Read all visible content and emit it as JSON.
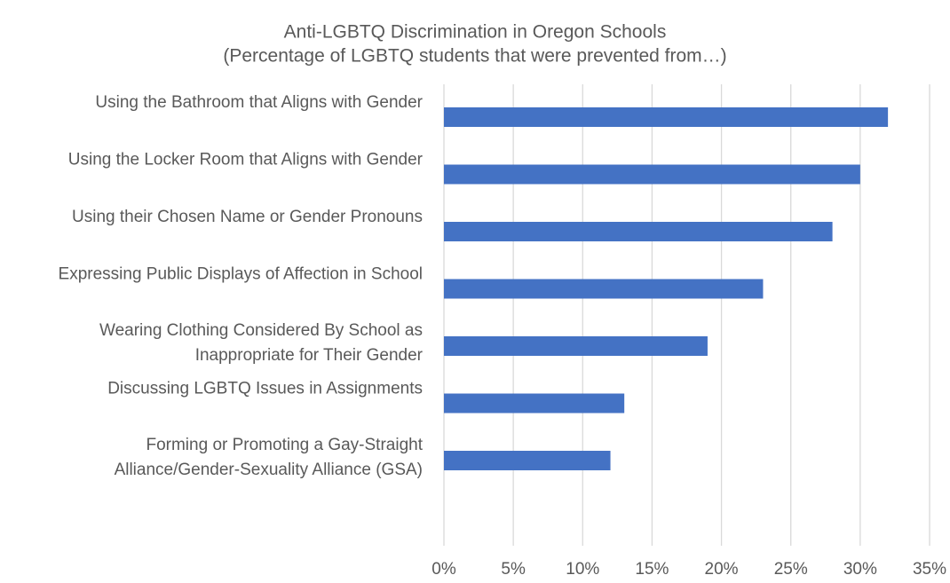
{
  "chart_data": {
    "type": "bar",
    "orientation": "horizontal",
    "title": "Anti-LGBTQ Discrimination in Oregon Schools",
    "subtitle": "(Percentage of LGBTQ students that were prevented from…)",
    "categories": [
      "Using the Bathroom that Aligns with Gender",
      "Using the Locker Room that Aligns with Gender",
      "Using their Chosen Name or Gender Pronouns",
      "Expressing Public Displays of Affection in School",
      "Wearing Clothing Considered By School as\nInappropriate for Their Gender",
      "Discussing LGBTQ Issues in Assignments",
      "Forming or Promoting a Gay-Straight\nAlliance/Gender-Sexuality Alliance (GSA)"
    ],
    "values": [
      32,
      30,
      28,
      23,
      19,
      13,
      12
    ],
    "color": "#4472c4",
    "xlim": [
      0,
      35
    ],
    "xticks": [
      {
        "value": 0,
        "label": "0%"
      },
      {
        "value": 5,
        "label": "5%"
      },
      {
        "value": 10,
        "label": "10%"
      },
      {
        "value": 15,
        "label": "15%"
      },
      {
        "value": 20,
        "label": "20%"
      },
      {
        "value": 25,
        "label": "25%"
      },
      {
        "value": 30,
        "label": "30%"
      },
      {
        "value": 35,
        "label": "35%"
      }
    ],
    "grid": true
  }
}
